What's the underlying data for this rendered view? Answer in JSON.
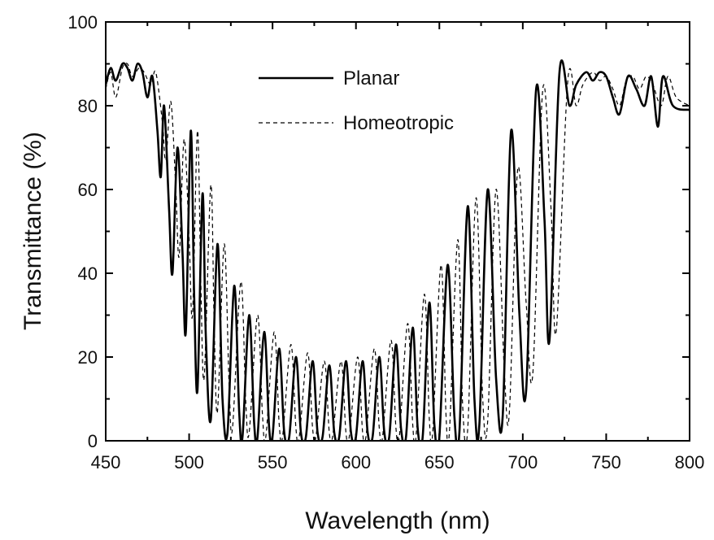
{
  "chart_data": {
    "type": "line",
    "title": "",
    "xlabel": "Wavelength (nm)",
    "ylabel": "Transmittance (%)",
    "xlim": [
      450,
      800
    ],
    "ylim": [
      0,
      100
    ],
    "x_ticks": [
      450,
      500,
      550,
      600,
      650,
      700,
      750,
      800
    ],
    "y_ticks": [
      0,
      20,
      40,
      60,
      80,
      100
    ],
    "grid": false,
    "legend_position": "top-center",
    "series": [
      {
        "name": "Planar",
        "style": "solid",
        "color": "#000000",
        "points": [
          [
            450,
            85
          ],
          [
            453,
            89
          ],
          [
            456,
            86
          ],
          [
            460,
            90
          ],
          [
            463,
            89
          ],
          [
            466,
            86
          ],
          [
            469,
            90
          ],
          [
            472,
            88
          ],
          [
            475,
            82
          ],
          [
            478,
            87
          ],
          [
            481,
            74
          ],
          [
            483,
            63
          ],
          [
            485,
            80
          ],
          [
            488,
            55
          ],
          [
            490,
            40
          ],
          [
            493,
            70
          ],
          [
            496,
            45
          ],
          [
            498,
            26
          ],
          [
            501,
            74
          ],
          [
            503,
            35
          ],
          [
            505,
            12
          ],
          [
            508,
            59
          ],
          [
            510,
            25
          ],
          [
            513,
            5
          ],
          [
            517,
            47
          ],
          [
            520,
            10
          ],
          [
            523,
            2
          ],
          [
            527,
            37
          ],
          [
            530,
            7
          ],
          [
            532,
            1
          ],
          [
            536,
            30
          ],
          [
            539,
            4
          ],
          [
            541,
            1
          ],
          [
            545,
            26
          ],
          [
            548,
            3
          ],
          [
            550,
            1
          ],
          [
            554,
            22
          ],
          [
            557,
            2
          ],
          [
            560,
            1
          ],
          [
            564,
            20
          ],
          [
            567,
            2
          ],
          [
            570,
            1
          ],
          [
            574,
            19
          ],
          [
            577,
            2
          ],
          [
            580,
            1
          ],
          [
            584,
            18
          ],
          [
            587,
            2
          ],
          [
            590,
            1
          ],
          [
            594,
            19
          ],
          [
            597,
            2
          ],
          [
            600,
            1
          ],
          [
            604,
            19
          ],
          [
            607,
            2
          ],
          [
            610,
            1
          ],
          [
            614,
            20
          ],
          [
            617,
            2
          ],
          [
            620,
            1
          ],
          [
            624,
            23
          ],
          [
            627,
            3
          ],
          [
            630,
            1
          ],
          [
            634,
            27
          ],
          [
            637,
            3
          ],
          [
            640,
            1
          ],
          [
            644,
            33
          ],
          [
            647,
            4
          ],
          [
            650,
            1
          ],
          [
            655,
            42
          ],
          [
            659,
            6
          ],
          [
            662,
            2
          ],
          [
            667,
            56
          ],
          [
            671,
            10
          ],
          [
            674,
            4
          ],
          [
            679,
            60
          ],
          [
            684,
            15
          ],
          [
            688,
            6
          ],
          [
            693,
            74
          ],
          [
            698,
            30
          ],
          [
            702,
            12
          ],
          [
            708,
            84
          ],
          [
            713,
            53
          ],
          [
            716,
            24
          ],
          [
            722,
            88
          ],
          [
            728,
            80
          ],
          [
            732,
            85
          ],
          [
            738,
            88
          ],
          [
            742,
            86
          ],
          [
            746,
            88
          ],
          [
            750,
            87
          ],
          [
            754,
            82
          ],
          [
            758,
            78
          ],
          [
            763,
            87
          ],
          [
            768,
            84
          ],
          [
            773,
            80
          ],
          [
            777,
            87
          ],
          [
            781,
            75
          ],
          [
            784,
            87
          ],
          [
            790,
            80
          ],
          [
            800,
            79
          ]
        ]
      },
      {
        "name": "Homeotropic",
        "style": "dashed",
        "color": "#000000",
        "points": [
          [
            450,
            84
          ],
          [
            453,
            88
          ],
          [
            456,
            82
          ],
          [
            460,
            89
          ],
          [
            463,
            90
          ],
          [
            466,
            87
          ],
          [
            470,
            89
          ],
          [
            473,
            88
          ],
          [
            477,
            85
          ],
          [
            480,
            88
          ],
          [
            484,
            76
          ],
          [
            486,
            67
          ],
          [
            489,
            81
          ],
          [
            492,
            60
          ],
          [
            494,
            44
          ],
          [
            497,
            72
          ],
          [
            500,
            48
          ],
          [
            502,
            30
          ],
          [
            505,
            74
          ],
          [
            507,
            38
          ],
          [
            509,
            15
          ],
          [
            513,
            61
          ],
          [
            515,
            28
          ],
          [
            517,
            7
          ],
          [
            521,
            47
          ],
          [
            524,
            13
          ],
          [
            526,
            3
          ],
          [
            531,
            38
          ],
          [
            534,
            9
          ],
          [
            536,
            2
          ],
          [
            541,
            30
          ],
          [
            544,
            6
          ],
          [
            546,
            1
          ],
          [
            551,
            26
          ],
          [
            554,
            4
          ],
          [
            556,
            1
          ],
          [
            561,
            23
          ],
          [
            564,
            3
          ],
          [
            566,
            1
          ],
          [
            571,
            21
          ],
          [
            574,
            3
          ],
          [
            576,
            1
          ],
          [
            581,
            19
          ],
          [
            584,
            2
          ],
          [
            586,
            1
          ],
          [
            591,
            19
          ],
          [
            594,
            2
          ],
          [
            596,
            1
          ],
          [
            601,
            20
          ],
          [
            604,
            2
          ],
          [
            606,
            1
          ],
          [
            611,
            22
          ],
          [
            614,
            3
          ],
          [
            616,
            1
          ],
          [
            621,
            24
          ],
          [
            624,
            3
          ],
          [
            626,
            1
          ],
          [
            631,
            28
          ],
          [
            634,
            4
          ],
          [
            636,
            1
          ],
          [
            641,
            35
          ],
          [
            644,
            5
          ],
          [
            646,
            2
          ],
          [
            651,
            42
          ],
          [
            654,
            6
          ],
          [
            656,
            2
          ],
          [
            661,
            48
          ],
          [
            664,
            8
          ],
          [
            667,
            3
          ],
          [
            672,
            58
          ],
          [
            676,
            10
          ],
          [
            679,
            5
          ],
          [
            684,
            60
          ],
          [
            689,
            16
          ],
          [
            692,
            7
          ],
          [
            697,
            65
          ],
          [
            702,
            33
          ],
          [
            706,
            16
          ],
          [
            712,
            84
          ],
          [
            717,
            55
          ],
          [
            720,
            26
          ],
          [
            727,
            86
          ],
          [
            732,
            80
          ],
          [
            736,
            85
          ],
          [
            742,
            88
          ],
          [
            746,
            86
          ],
          [
            750,
            87
          ],
          [
            754,
            84
          ],
          [
            758,
            80
          ],
          [
            762,
            86
          ],
          [
            766,
            87
          ],
          [
            770,
            84
          ],
          [
            774,
            87
          ],
          [
            778,
            85
          ],
          [
            783,
            80
          ],
          [
            787,
            87
          ],
          [
            792,
            82
          ],
          [
            800,
            80
          ]
        ]
      }
    ]
  }
}
